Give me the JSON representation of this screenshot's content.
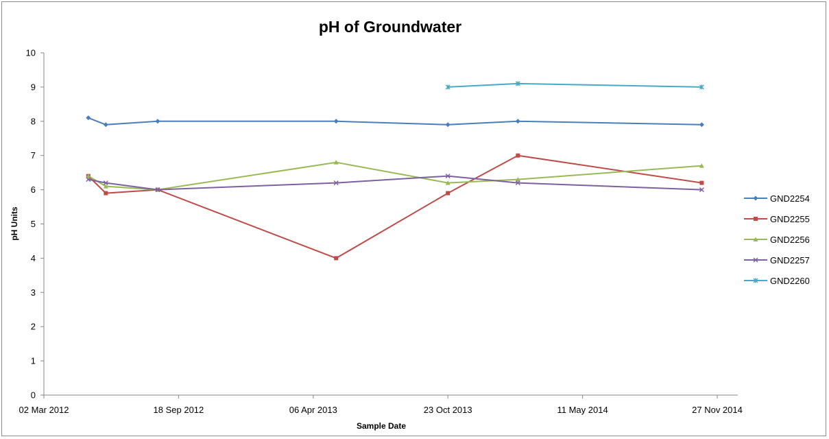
{
  "chart_data": {
    "type": "line",
    "title": "pH of Groundwater",
    "xlabel": "Sample Date",
    "ylabel": "pH Units",
    "x_axis_type": "date",
    "xlim": [
      "2012-03-02",
      "2014-11-27"
    ],
    "ylim": [
      0,
      10
    ],
    "y_ticks": [
      0,
      1,
      2,
      3,
      4,
      5,
      6,
      7,
      8,
      9,
      10
    ],
    "x_ticks": [
      {
        "date": "2012-03-02",
        "label": "02 Mar 2012"
      },
      {
        "date": "2012-09-18",
        "label": "18 Sep 2012"
      },
      {
        "date": "2013-04-06",
        "label": "06 Apr 2013"
      },
      {
        "date": "2013-10-23",
        "label": "23 Oct 2013"
      },
      {
        "date": "2014-05-11",
        "label": "11 May 2014"
      },
      {
        "date": "2014-11-27",
        "label": "27 Nov 2014"
      }
    ],
    "grid": false,
    "legend_position": "right",
    "series": [
      {
        "name": "GND2254",
        "color": "#4a7ebb",
        "marker": "diamond",
        "points": [
          {
            "x": "2012-05-07",
            "y": 8.1
          },
          {
            "x": "2012-06-02",
            "y": 7.9
          },
          {
            "x": "2012-08-18",
            "y": 8.0
          },
          {
            "x": "2013-05-10",
            "y": 8.0
          },
          {
            "x": "2013-10-23",
            "y": 7.9
          },
          {
            "x": "2014-02-04",
            "y": 8.0
          },
          {
            "x": "2014-11-04",
            "y": 7.9
          }
        ]
      },
      {
        "name": "GND2255",
        "color": "#be4b48",
        "marker": "square",
        "points": [
          {
            "x": "2012-05-07",
            "y": 6.4
          },
          {
            "x": "2012-06-02",
            "y": 5.9
          },
          {
            "x": "2012-08-18",
            "y": 6.0
          },
          {
            "x": "2013-05-10",
            "y": 4.0
          },
          {
            "x": "2013-10-23",
            "y": 5.9
          },
          {
            "x": "2014-02-04",
            "y": 7.0
          },
          {
            "x": "2014-11-04",
            "y": 6.2
          }
        ]
      },
      {
        "name": "GND2256",
        "color": "#98b954",
        "marker": "triangle",
        "points": [
          {
            "x": "2012-05-07",
            "y": 6.4
          },
          {
            "x": "2012-06-02",
            "y": 6.1
          },
          {
            "x": "2012-08-18",
            "y": 6.0
          },
          {
            "x": "2013-05-10",
            "y": 6.8
          },
          {
            "x": "2013-10-23",
            "y": 6.2
          },
          {
            "x": "2014-02-04",
            "y": 6.3
          },
          {
            "x": "2014-11-04",
            "y": 6.7
          }
        ]
      },
      {
        "name": "GND2257",
        "color": "#7d60a0",
        "marker": "x",
        "points": [
          {
            "x": "2012-05-07",
            "y": 6.3
          },
          {
            "x": "2012-06-02",
            "y": 6.2
          },
          {
            "x": "2012-08-18",
            "y": 6.0
          },
          {
            "x": "2013-05-10",
            "y": 6.2
          },
          {
            "x": "2013-10-23",
            "y": 6.4
          },
          {
            "x": "2014-02-04",
            "y": 6.2
          },
          {
            "x": "2014-11-04",
            "y": 6.0
          }
        ]
      },
      {
        "name": "GND2260",
        "color": "#46aac5",
        "marker": "star",
        "points": [
          {
            "x": "2013-10-23",
            "y": 9.0
          },
          {
            "x": "2014-02-04",
            "y": 9.1
          },
          {
            "x": "2014-11-04",
            "y": 9.0
          }
        ]
      }
    ]
  }
}
